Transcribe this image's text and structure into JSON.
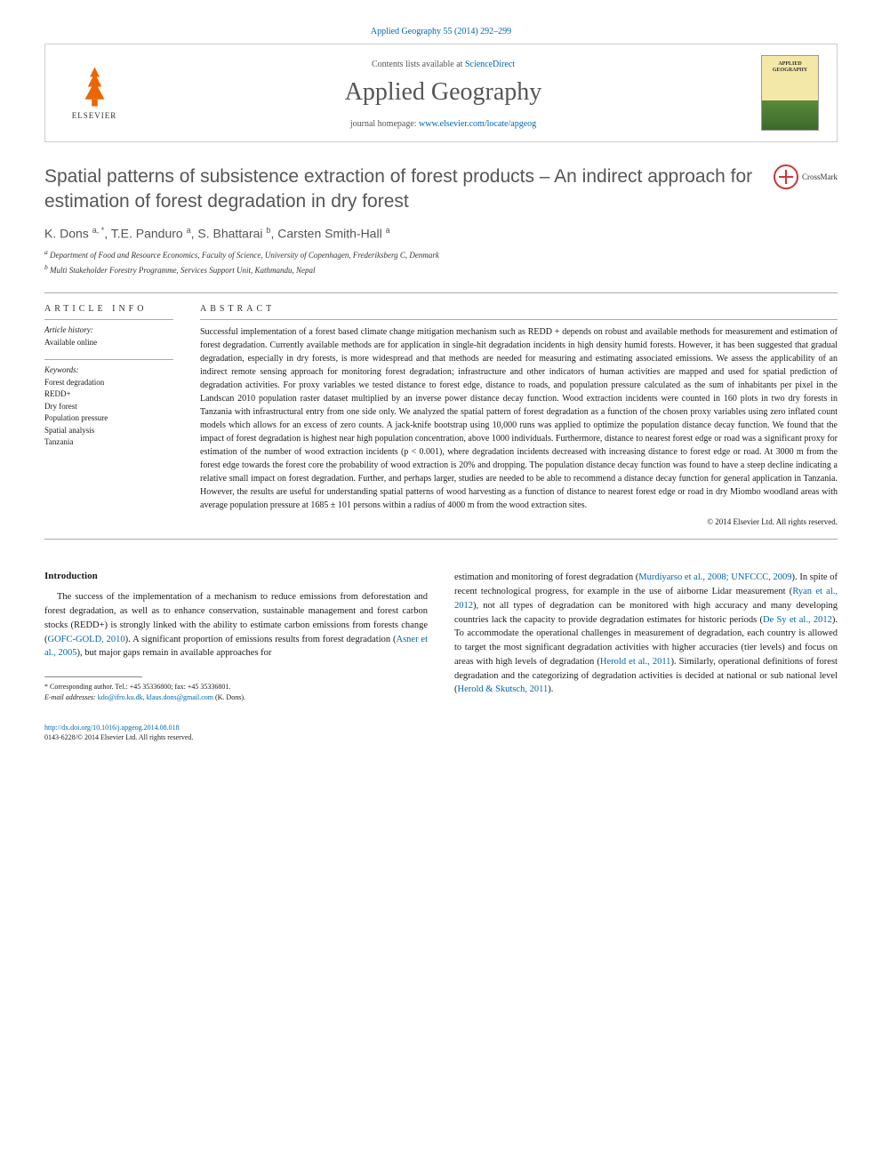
{
  "citation": "Applied Geography 55 (2014) 292–299",
  "header": {
    "contents_prefix": "Contents lists available at ",
    "contents_link": "ScienceDirect",
    "journal_name": "Applied Geography",
    "homepage_prefix": "journal homepage: ",
    "homepage_link": "www.elsevier.com/locate/apgeog",
    "elsevier_label": "ELSEVIER",
    "cover_label": "APPLIED GEOGRAPHY"
  },
  "title": "Spatial patterns of subsistence extraction of forest products – An indirect approach for estimation of forest degradation in dry forest",
  "crossmark_label": "CrossMark",
  "authors_html": "K. Dons <sup>a, *</sup>, T.E. Panduro <sup>a</sup>, S. Bhattarai <sup>b</sup>, Carsten Smith-Hall <sup>a</sup>",
  "affiliations": {
    "a": "Department of Food and Resource Economics, Faculty of Science, University of Copenhagen, Frederiksberg C, Denmark",
    "b": "Multi Stakeholder Forestry Programme, Services Support Unit, Kathmandu, Nepal"
  },
  "article_info": {
    "header": "ARTICLE INFO",
    "history_label": "Article history:",
    "history_value": "Available online",
    "keywords_label": "Keywords:",
    "keywords": [
      "Forest degradation",
      "REDD+",
      "Dry forest",
      "Population pressure",
      "Spatial analysis",
      "Tanzania"
    ]
  },
  "abstract": {
    "header": "ABSTRACT",
    "text": "Successful implementation of a forest based climate change mitigation mechanism such as REDD + depends on robust and available methods for measurement and estimation of forest degradation. Currently available methods are for application in single-hit degradation incidents in high density humid forests. However, it has been suggested that gradual degradation, especially in dry forests, is more widespread and that methods are needed for measuring and estimating associated emissions. We assess the applicability of an indirect remote sensing approach for monitoring forest degradation; infrastructure and other indicators of human activities are mapped and used for spatial prediction of degradation activities. For proxy variables we tested distance to forest edge, distance to roads, and population pressure calculated as the sum of inhabitants per pixel in the Landscan 2010 population raster dataset multiplied by an inverse power distance decay function. Wood extraction incidents were counted in 160 plots in two dry forests in Tanzania with infrastructural entry from one side only. We analyzed the spatial pattern of forest degradation as a function of the chosen proxy variables using zero inflated count models which allows for an excess of zero counts. A jack-knife bootstrap using 10,000 runs was applied to optimize the population distance decay function. We found that the impact of forest degradation is highest near high population concentration, above 1000 individuals. Furthermore, distance to nearest forest edge or road was a significant proxy for estimation of the number of wood extraction incidents (p < 0.001), where degradation incidents decreased with increasing distance to forest edge or road. At 3000 m from the forest edge towards the forest core the probability of wood extraction is 20% and dropping. The population distance decay function was found to have a steep decline indicating a relative small impact on forest degradation. Further, and perhaps larger, studies are needed to be able to recommend a distance decay function for general application in Tanzania. However, the results are useful for understanding spatial patterns of wood harvesting as a function of distance to nearest forest edge or road in dry Miombo woodland areas with average population pressure at 1685 ± 101 persons within a radius of 4000 m from the wood extraction sites.",
    "copyright": "© 2014 Elsevier Ltd. All rights reserved."
  },
  "body": {
    "introduction_heading": "Introduction",
    "col1": "The success of the implementation of a mechanism to reduce emissions from deforestation and forest degradation, as well as to enhance conservation, sustainable management and forest carbon stocks (REDD+) is strongly linked with the ability to estimate carbon emissions from forests change (GOFC-GOLD, 2010). A significant proportion of emissions results from forest degradation (Asner et al., 2005), but major gaps remain in available approaches for",
    "col2": "estimation and monitoring of forest degradation (Murdiyarso et al., 2008; UNFCCC, 2009). In spite of recent technological progress, for example in the use of airborne Lidar measurement (Ryan et al., 2012), not all types of degradation can be monitored with high accuracy and many developing countries lack the capacity to provide degradation estimates for historic periods (De Sy et al., 2012). To accommodate the operational challenges in measurement of degradation, each country is allowed to target the most significant degradation activities with higher accuracies (tier levels) and focus on areas with high levels of degradation (Herold et al., 2011). Similarly, operational definitions of forest degradation and the categorizing of degradation activities is decided at national or sub national level (Herold & Skutsch, 2011).",
    "cites_col1": [
      "GOFC-GOLD, 2010",
      "Asner et al., 2005"
    ],
    "cites_col2": [
      "Murdiyarso et al., 2008; UNFCCC, 2009",
      "Ryan et al., 2012",
      "De Sy et al., 2012",
      "Herold et al., 2011",
      "Herold & Skutsch, 2011"
    ]
  },
  "footnote": {
    "corresponding": "* Corresponding author. Tel.: +45 35336800; fax: +45 35336801.",
    "email_label": "E-mail addresses:",
    "emails": "kdo@ifro.ku.dk, klaus.dons@gmail.com",
    "email_suffix": "(K. Dons)."
  },
  "doi": {
    "link": "http://dx.doi.org/10.1016/j.apgeog.2014.08.018",
    "issn_line": "0143-6228/© 2014 Elsevier Ltd. All rights reserved."
  },
  "colors": {
    "link": "#0066aa",
    "text": "#1a1a1a",
    "heading_gray": "#565656",
    "elsevier_orange": "#eb6500"
  }
}
